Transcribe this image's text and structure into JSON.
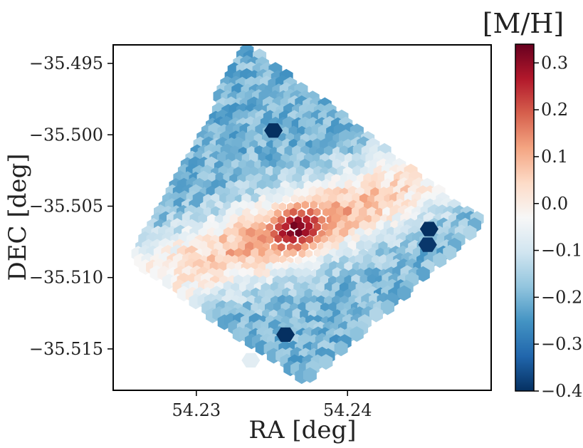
{
  "chart_data": {
    "type": "heatmap",
    "title": "",
    "xlabel": "RA [deg]",
    "ylabel": "DEC [deg]",
    "colorbar_label": "[M/H]",
    "x_ticks": [
      {
        "value": 54.23,
        "label": "54.23"
      },
      {
        "value": 54.24,
        "label": "54.24"
      }
    ],
    "y_ticks": [
      {
        "value": -35.495,
        "label": "−35.495"
      },
      {
        "value": -35.5,
        "label": "−35.500"
      },
      {
        "value": -35.505,
        "label": "−35.505"
      },
      {
        "value": -35.51,
        "label": "−35.510"
      },
      {
        "value": -35.515,
        "label": "−35.515"
      }
    ],
    "colorbar_ticks": [
      {
        "value": 0.3,
        "label": "0.3"
      },
      {
        "value": 0.2,
        "label": "0.2"
      },
      {
        "value": 0.1,
        "label": "0.1"
      },
      {
        "value": 0.0,
        "label": "0.0"
      },
      {
        "value": -0.1,
        "label": "−0.1"
      },
      {
        "value": -0.2,
        "label": "−0.2"
      },
      {
        "value": -0.3,
        "label": "−0.3"
      },
      {
        "value": -0.4,
        "label": "−0.4"
      }
    ],
    "xlim": [
      54.2245,
      54.2495
    ],
    "ylim": [
      -35.5179,
      -35.4937
    ],
    "clim": [
      -0.4,
      0.34
    ],
    "colormap": "RdBu_r",
    "field": {
      "footprint_corners": [
        [
          54.2333,
          -35.4938
        ],
        [
          54.249,
          -35.5062
        ],
        [
          54.2372,
          -35.5172
        ],
        [
          54.2258,
          -35.5088
        ]
      ],
      "center": {
        "ra": 54.2366,
        "dec": -35.5066,
        "value": 0.33
      },
      "disk_position_angle_deg": 20,
      "disk_major_axis_deg": 0.0125,
      "disk_minor_axis_deg": 0.0026,
      "disk_value": 0.12,
      "outskirt_value": -0.2,
      "low_metallicity_bins": [
        {
          "ra": 54.2351,
          "dec": -35.4997,
          "value": -0.4
        },
        {
          "ra": 54.2454,
          "dec": -35.5066,
          "value": -0.4
        },
        {
          "ra": 54.2453,
          "dec": -35.5077,
          "value": -0.39
        },
        {
          "ra": 54.2359,
          "dec": -35.514,
          "value": -0.4
        }
      ],
      "light_bins": [
        {
          "ra": 54.2336,
          "dec": -35.5158,
          "value": -0.07
        }
      ]
    }
  }
}
